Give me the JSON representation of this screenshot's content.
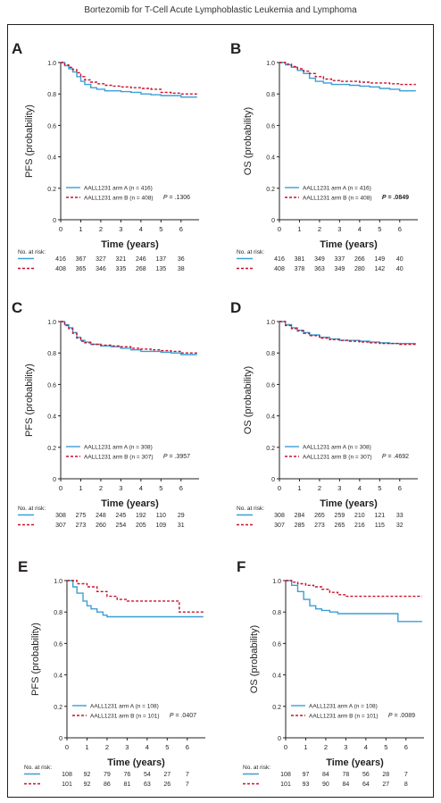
{
  "header": {
    "title": "Bortezomib for T-Cell Acute Lymphoblastic Leukemia and Lymphoma"
  },
  "colors": {
    "armA": "#3b9fd4",
    "armB": "#c8102e",
    "axis": "#231f20"
  },
  "risk_label": "No. at risk:",
  "chart_data": [
    {
      "panel": "A",
      "type": "line",
      "ylabel": "PFS (probability)",
      "xlabel": "Time (years)",
      "xlim": [
        0,
        6.9
      ],
      "ylim": [
        0,
        1.0
      ],
      "xticks": [
        "0",
        "1",
        "2",
        "3",
        "4",
        "5",
        "6"
      ],
      "yticks": [
        "0",
        "0.2",
        "0.4",
        "0.6",
        "0.8",
        "1.0"
      ],
      "pvalue": "P = .1306",
      "pvalue_bold": false,
      "series": [
        {
          "name": "AALL1231 arm A (n = 416)",
          "x": [
            0,
            0.2,
            0.4,
            0.6,
            0.8,
            1,
            1.2,
            1.5,
            1.8,
            2.2,
            2.6,
            3,
            3.5,
            4,
            4.5,
            5,
            5.5,
            6,
            6.8
          ],
          "y": [
            1,
            0.98,
            0.96,
            0.94,
            0.91,
            0.88,
            0.86,
            0.84,
            0.83,
            0.82,
            0.82,
            0.815,
            0.81,
            0.8,
            0.795,
            0.79,
            0.79,
            0.78,
            0.78
          ]
        },
        {
          "name": "AALL1231 arm B (n = 408)",
          "x": [
            0,
            0.2,
            0.4,
            0.6,
            0.8,
            1,
            1.2,
            1.5,
            1.8,
            2.2,
            2.6,
            3,
            3.5,
            4,
            4.5,
            5,
            5.5,
            6,
            6.8
          ],
          "y": [
            1,
            0.985,
            0.97,
            0.955,
            0.935,
            0.91,
            0.89,
            0.875,
            0.865,
            0.855,
            0.85,
            0.845,
            0.84,
            0.835,
            0.83,
            0.81,
            0.805,
            0.8,
            0.8
          ]
        }
      ],
      "risk": [
        [
          "416",
          "367",
          "327",
          "321",
          "246",
          "137",
          "36"
        ],
        [
          "408",
          "365",
          "346",
          "335",
          "268",
          "135",
          "38"
        ]
      ]
    },
    {
      "panel": "B",
      "type": "line",
      "ylabel": "OS (probability)",
      "xlabel": "Time (years)",
      "xlim": [
        0,
        6.9
      ],
      "ylim": [
        0,
        1.0
      ],
      "xticks": [
        "0",
        "1",
        "2",
        "3",
        "4",
        "5",
        "6"
      ],
      "yticks": [
        "0",
        "0.2",
        "0.4",
        "0.6",
        "0.8",
        "1.0"
      ],
      "pvalue": "P = .0849",
      "pvalue_bold": true,
      "series": [
        {
          "name": "AALL1231 arm A (n = 416)",
          "x": [
            0,
            0.3,
            0.6,
            0.9,
            1.2,
            1.5,
            1.8,
            2.2,
            2.6,
            3,
            3.5,
            4,
            4.5,
            5,
            5.5,
            6,
            6.8
          ],
          "y": [
            1,
            0.985,
            0.97,
            0.95,
            0.93,
            0.9,
            0.88,
            0.87,
            0.86,
            0.86,
            0.855,
            0.85,
            0.845,
            0.835,
            0.83,
            0.82,
            0.82
          ]
        },
        {
          "name": "AALL1231 arm B (n = 408)",
          "x": [
            0,
            0.3,
            0.6,
            0.9,
            1.2,
            1.5,
            1.8,
            2.2,
            2.6,
            3,
            3.5,
            4,
            4.5,
            5,
            5.5,
            6,
            6.8
          ],
          "y": [
            1,
            0.99,
            0.975,
            0.96,
            0.945,
            0.93,
            0.91,
            0.895,
            0.885,
            0.88,
            0.88,
            0.875,
            0.87,
            0.87,
            0.865,
            0.86,
            0.86
          ]
        }
      ],
      "risk": [
        [
          "416",
          "381",
          "349",
          "337",
          "266",
          "149",
          "40"
        ],
        [
          "408",
          "378",
          "363",
          "349",
          "280",
          "142",
          "40"
        ]
      ]
    },
    {
      "panel": "C",
      "type": "line",
      "ylabel": "PFS (probability)",
      "xlabel": "Time (years)",
      "xlim": [
        0,
        6.9
      ],
      "ylim": [
        0,
        1.0
      ],
      "xticks": [
        "0",
        "1",
        "2",
        "3",
        "4",
        "5",
        "6"
      ],
      "yticks": [
        "0",
        "0.2",
        "0.4",
        "0.6",
        "0.8",
        "1.0"
      ],
      "pvalue": "P = .3957",
      "pvalue_bold": false,
      "series": [
        {
          "name": "AALL1231 arm A (n = 308)",
          "x": [
            0,
            0.2,
            0.4,
            0.6,
            0.8,
            1,
            1.2,
            1.5,
            2,
            2.5,
            3,
            3.5,
            4,
            4.5,
            5,
            5.5,
            6,
            6.8
          ],
          "y": [
            1,
            0.98,
            0.96,
            0.93,
            0.9,
            0.88,
            0.87,
            0.855,
            0.845,
            0.84,
            0.83,
            0.82,
            0.81,
            0.81,
            0.805,
            0.8,
            0.79,
            0.79
          ]
        },
        {
          "name": "AALL1231 arm B (n = 307)",
          "x": [
            0,
            0.2,
            0.4,
            0.6,
            0.8,
            1,
            1.2,
            1.5,
            2,
            2.5,
            3,
            3.5,
            4,
            4.5,
            5,
            5.5,
            6,
            6.8
          ],
          "y": [
            1,
            0.975,
            0.955,
            0.925,
            0.895,
            0.875,
            0.865,
            0.855,
            0.85,
            0.845,
            0.84,
            0.83,
            0.825,
            0.82,
            0.815,
            0.81,
            0.8,
            0.8
          ]
        }
      ],
      "risk": [
        [
          "308",
          "275",
          "248",
          "245",
          "192",
          "110",
          "29"
        ],
        [
          "307",
          "273",
          "260",
          "254",
          "205",
          "109",
          "31"
        ]
      ]
    },
    {
      "panel": "D",
      "type": "line",
      "ylabel": "OS (probability)",
      "xlabel": "Time (years)",
      "xlim": [
        0,
        6.9
      ],
      "ylim": [
        0,
        1.0
      ],
      "xticks": [
        "0",
        "1",
        "2",
        "3",
        "4",
        "5",
        "6"
      ],
      "yticks": [
        "0",
        "0.2",
        "0.4",
        "0.6",
        "0.8",
        "1.0"
      ],
      "pvalue": "P = .4692",
      "pvalue_bold": false,
      "series": [
        {
          "name": "AALL1231 arm A (n = 308)",
          "x": [
            0,
            0.3,
            0.6,
            0.9,
            1.2,
            1.5,
            2,
            2.5,
            3,
            3.5,
            4,
            4.5,
            5,
            5.5,
            6,
            6.8
          ],
          "y": [
            1,
            0.98,
            0.96,
            0.945,
            0.93,
            0.915,
            0.9,
            0.89,
            0.88,
            0.88,
            0.875,
            0.87,
            0.865,
            0.86,
            0.86,
            0.86
          ]
        },
        {
          "name": "AALL1231 arm B (n = 307)",
          "x": [
            0,
            0.3,
            0.6,
            0.9,
            1.2,
            1.5,
            2,
            2.5,
            3,
            3.5,
            4,
            4.5,
            5,
            5.5,
            6,
            6.8
          ],
          "y": [
            1,
            0.975,
            0.955,
            0.94,
            0.925,
            0.91,
            0.895,
            0.885,
            0.88,
            0.875,
            0.87,
            0.865,
            0.86,
            0.86,
            0.855,
            0.855
          ]
        }
      ],
      "risk": [
        [
          "308",
          "284",
          "265",
          "259",
          "210",
          "121",
          "33"
        ],
        [
          "307",
          "285",
          "273",
          "265",
          "216",
          "115",
          "32"
        ]
      ]
    },
    {
      "panel": "E",
      "type": "line",
      "ylabel": "PFS (probability)",
      "xlabel": "Time (years)",
      "xlim": [
        0,
        6.9
      ],
      "ylim": [
        0,
        1.0
      ],
      "xticks": [
        "0",
        "1",
        "2",
        "3",
        "4",
        "5",
        "6"
      ],
      "yticks": [
        "0",
        "0.2",
        "0.4",
        "0.6",
        "0.8",
        "1.0"
      ],
      "pvalue": "P = .0407",
      "pvalue_bold": false,
      "series": [
        {
          "name": "AALL1231 arm A (n = 108)",
          "x": [
            0,
            0.3,
            0.5,
            0.8,
            1,
            1.2,
            1.5,
            1.8,
            2,
            2.5,
            3,
            4,
            5,
            6,
            6.8
          ],
          "y": [
            1,
            0.96,
            0.92,
            0.87,
            0.84,
            0.82,
            0.8,
            0.78,
            0.77,
            0.77,
            0.77,
            0.77,
            0.77,
            0.77,
            0.77
          ]
        },
        {
          "name": "AALL1231 arm B (n = 101)",
          "x": [
            0,
            0.5,
            1,
            1.5,
            2,
            2.5,
            3,
            3.5,
            4,
            5,
            5.6,
            5.6,
            6,
            6.8
          ],
          "y": [
            1,
            0.98,
            0.96,
            0.93,
            0.9,
            0.88,
            0.87,
            0.87,
            0.87,
            0.87,
            0.87,
            0.8,
            0.8,
            0.8
          ]
        }
      ],
      "risk": [
        [
          "108",
          "92",
          "79",
          "76",
          "54",
          "27",
          "7"
        ],
        [
          "101",
          "92",
          "86",
          "81",
          "63",
          "26",
          "7"
        ]
      ]
    },
    {
      "panel": "F",
      "type": "line",
      "ylabel": "OS (probability)",
      "xlabel": "Time (years)",
      "xlim": [
        0,
        6.9
      ],
      "ylim": [
        0,
        1.0
      ],
      "xticks": [
        "0",
        "1",
        "2",
        "3",
        "4",
        "5",
        "6"
      ],
      "yticks": [
        "0",
        "0.2",
        "0.4",
        "0.6",
        "0.8",
        "1.0"
      ],
      "pvalue": "P = .0089",
      "pvalue_bold": false,
      "series": [
        {
          "name": "AALL1231 arm A (n = 108)",
          "x": [
            0,
            0.3,
            0.6,
            0.9,
            1.2,
            1.5,
            1.8,
            2.2,
            2.6,
            3,
            4,
            5,
            5.6,
            5.6,
            6,
            6.8
          ],
          "y": [
            1,
            0.97,
            0.93,
            0.88,
            0.84,
            0.82,
            0.81,
            0.8,
            0.79,
            0.79,
            0.79,
            0.79,
            0.79,
            0.74,
            0.74,
            0.74
          ]
        },
        {
          "name": "AALL1231 arm B (n = 101)",
          "x": [
            0,
            0.3,
            0.6,
            1,
            1.4,
            1.8,
            2.2,
            2.6,
            3,
            4,
            5,
            6,
            6.8
          ],
          "y": [
            1,
            0.99,
            0.98,
            0.97,
            0.96,
            0.945,
            0.925,
            0.91,
            0.9,
            0.9,
            0.9,
            0.9,
            0.9
          ]
        }
      ],
      "risk": [
        [
          "108",
          "97",
          "84",
          "78",
          "56",
          "28",
          "7"
        ],
        [
          "101",
          "93",
          "90",
          "84",
          "64",
          "27",
          "8"
        ]
      ]
    }
  ]
}
